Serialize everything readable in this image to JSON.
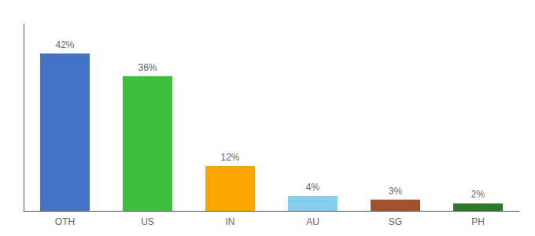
{
  "chart_data": {
    "type": "bar",
    "categories": [
      "OTH",
      "US",
      "IN",
      "AU",
      "SG",
      "PH"
    ],
    "values": [
      42,
      36,
      12,
      4,
      3,
      2
    ],
    "value_labels": [
      "42%",
      "36%",
      "12%",
      "4%",
      "3%",
      "2%"
    ],
    "colors": [
      "#4472C4",
      "#3DBD3D",
      "#FFA500",
      "#87CEEB",
      "#A0522D",
      "#2D7A2D"
    ],
    "ylim": [
      0,
      50
    ],
    "data_labels": true,
    "tick_labels": "x",
    "grid": false
  }
}
